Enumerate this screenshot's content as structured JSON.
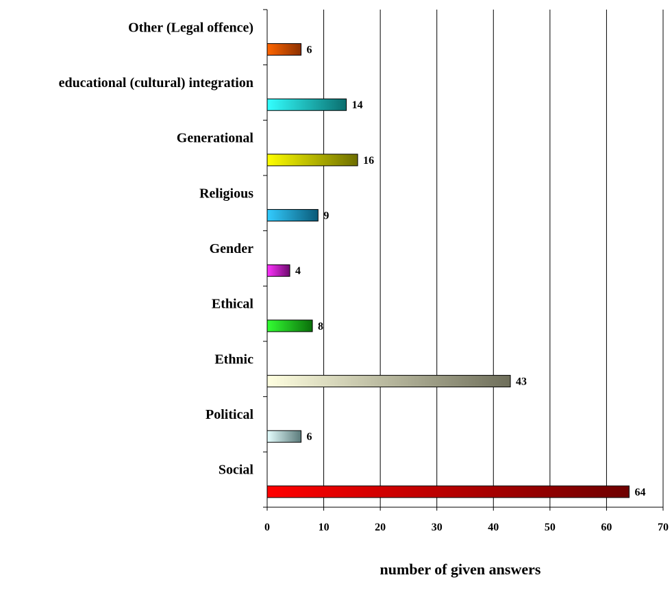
{
  "chart_data": {
    "type": "bar",
    "orientation": "horizontal",
    "categories": [
      "Social",
      "Political",
      "Ethnic",
      "Ethical",
      "Gender",
      "Religious",
      "Generational",
      "educational (cultural) integration",
      "Other (Legal offence)"
    ],
    "values": [
      64,
      6,
      43,
      8,
      4,
      9,
      16,
      14,
      6
    ],
    "colors": [
      [
        "#ff0000",
        "#6e0000"
      ],
      [
        "#e6ffff",
        "#5a7a7a"
      ],
      [
        "#ffffe0",
        "#6e6e5a"
      ],
      [
        "#33ff33",
        "#0a6e0a"
      ],
      [
        "#ff33ff",
        "#6e0a6e"
      ],
      [
        "#33ccff",
        "#0a5a78"
      ],
      [
        "#ffff00",
        "#6e6e00"
      ],
      [
        "#33ffff",
        "#0a6e6e"
      ],
      [
        "#ff6600",
        "#8c3000"
      ]
    ],
    "xlabel": "number of given answers",
    "xlim": [
      0,
      70
    ],
    "xticks": [
      0,
      10,
      20,
      30,
      40,
      50,
      60,
      70
    ],
    "grid": true
  }
}
